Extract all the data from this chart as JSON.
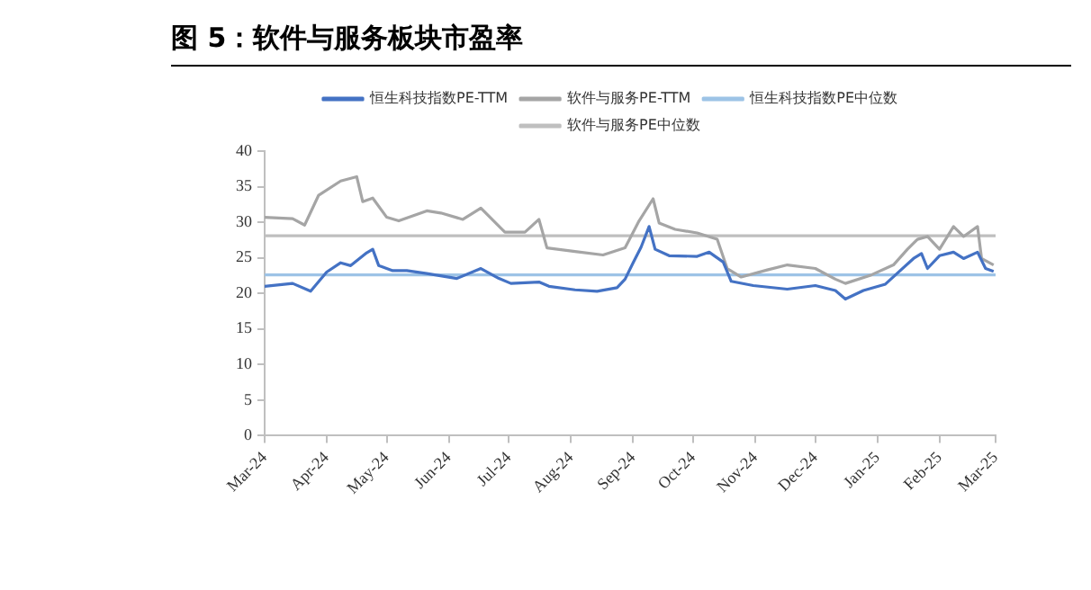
{
  "chart_data": {
    "type": "line",
    "title": "图 5：软件与服务板块市盈率",
    "xlim": [
      "2024-03-01",
      "2025-03-01"
    ],
    "xticks": [
      {
        "value": "2024-03-01",
        "label": "Mar-24"
      },
      {
        "value": "2024-04-01",
        "label": "Apr-24"
      },
      {
        "value": "2024-05-01",
        "label": "May-24"
      },
      {
        "value": "2024-06-01",
        "label": "Jun-24"
      },
      {
        "value": "2024-07-01",
        "label": "Jul-24"
      },
      {
        "value": "2024-08-01",
        "label": "Aug-24"
      },
      {
        "value": "2024-09-01",
        "label": "Sep-24"
      },
      {
        "value": "2024-10-01",
        "label": "Oct-24"
      },
      {
        "value": "2024-11-01",
        "label": "Nov-24"
      },
      {
        "value": "2024-12-01",
        "label": "Dec-24"
      },
      {
        "value": "2025-01-01",
        "label": "Jan-25"
      },
      {
        "value": "2025-02-01",
        "label": "Feb-25"
      },
      {
        "value": "2025-03-01",
        "label": "Mar-25"
      }
    ],
    "ylim": [
      0,
      40
    ],
    "yticks": [
      0,
      5,
      10,
      15,
      20,
      25,
      30,
      35,
      40
    ],
    "grid": false,
    "legend": "top",
    "marker": "none",
    "series": [
      {
        "name": "恒生科技指数PE-TTM",
        "color": "#4472c4",
        "x": [
          "2024-03-01",
          "2024-03-15",
          "2024-03-24",
          "2024-04-01",
          "2024-04-08",
          "2024-04-13",
          "2024-04-21",
          "2024-04-24",
          "2024-04-27",
          "2024-05-04",
          "2024-05-11",
          "2024-05-21",
          "2024-06-05",
          "2024-06-17",
          "2024-06-26",
          "2024-07-02",
          "2024-07-16",
          "2024-07-21",
          "2024-08-03",
          "2024-08-14",
          "2024-08-24",
          "2024-08-28",
          "2024-09-01",
          "2024-09-05",
          "2024-09-09",
          "2024-09-12",
          "2024-09-19",
          "2024-10-03",
          "2024-10-09",
          "2024-10-16",
          "2024-10-20",
          "2024-10-31",
          "2024-11-17",
          "2024-12-01",
          "2024-12-11",
          "2024-12-16",
          "2024-12-25",
          "2025-01-05",
          "2025-01-12",
          "2025-01-19",
          "2025-01-23",
          "2025-01-26",
          "2025-02-01",
          "2025-02-08",
          "2025-02-13",
          "2025-02-20",
          "2025-02-24",
          "2025-02-28"
        ],
        "values": [
          21.0,
          21.4,
          20.3,
          23.0,
          24.3,
          23.9,
          25.7,
          26.2,
          23.9,
          23.2,
          23.2,
          22.8,
          22.1,
          23.5,
          22.1,
          21.4,
          21.6,
          21.0,
          20.5,
          20.3,
          20.8,
          22.0,
          24.3,
          26.5,
          29.4,
          26.2,
          25.3,
          25.2,
          25.8,
          24.4,
          21.7,
          21.1,
          20.6,
          21.1,
          20.4,
          19.2,
          20.4,
          21.3,
          23.1,
          24.9,
          25.6,
          23.5,
          25.3,
          25.8,
          24.9,
          25.8,
          23.5,
          23.1
        ]
      },
      {
        "name": "软件与服务PE-TTM",
        "color": "#a5a5a5",
        "x": [
          "2024-03-01",
          "2024-03-15",
          "2024-03-21",
          "2024-03-28",
          "2024-04-08",
          "2024-04-16",
          "2024-04-19",
          "2024-04-24",
          "2024-05-01",
          "2024-05-07",
          "2024-05-14",
          "2024-05-21",
          "2024-05-28",
          "2024-06-08",
          "2024-06-17",
          "2024-06-29",
          "2024-07-09",
          "2024-07-16",
          "2024-07-20",
          "2024-08-03",
          "2024-08-17",
          "2024-08-28",
          "2024-09-04",
          "2024-09-11",
          "2024-09-14",
          "2024-09-22",
          "2024-10-03",
          "2024-10-13",
          "2024-10-18",
          "2024-10-25",
          "2024-11-07",
          "2024-11-17",
          "2024-12-01",
          "2024-12-11",
          "2024-12-16",
          "2024-12-29",
          "2025-01-09",
          "2025-01-16",
          "2025-01-21",
          "2025-01-26",
          "2025-02-01",
          "2025-02-08",
          "2025-02-13",
          "2025-02-20",
          "2025-02-22",
          "2025-02-28"
        ],
        "values": [
          30.7,
          30.5,
          29.6,
          33.8,
          35.8,
          36.4,
          32.9,
          33.4,
          30.7,
          30.2,
          30.9,
          31.6,
          31.3,
          30.4,
          32.0,
          28.6,
          28.6,
          30.4,
          26.4,
          25.9,
          25.4,
          26.4,
          30.2,
          33.3,
          29.9,
          29.0,
          28.5,
          27.6,
          23.5,
          22.3,
          23.3,
          24.0,
          23.5,
          22.0,
          21.4,
          22.6,
          24.0,
          26.2,
          27.6,
          28.0,
          26.2,
          29.4,
          28.0,
          29.4,
          24.9,
          24.0
        ]
      },
      {
        "name": "恒生科技指数PE中位数",
        "color": "#9dc3e6",
        "x": [
          "2024-03-01",
          "2025-03-01"
        ],
        "values": [
          22.6,
          22.6
        ]
      },
      {
        "name": "软件与服务PE中位数",
        "color": "#bfbfbf",
        "x": [
          "2024-03-01",
          "2025-03-01"
        ],
        "values": [
          28.1,
          28.1
        ]
      }
    ]
  }
}
